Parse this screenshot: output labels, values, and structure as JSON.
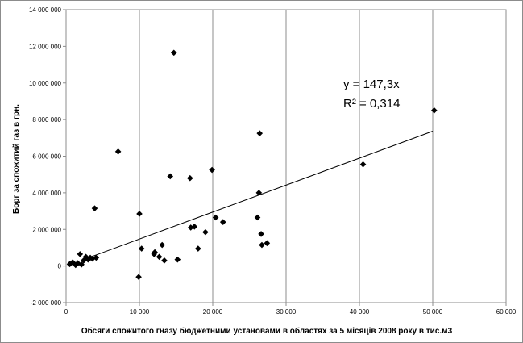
{
  "chart_data": {
    "type": "scatter",
    "title": "",
    "xlabel": "Обсяги спожитого гназу бюджетними установами в областях за 5 місяців 2008 року в тис.м3",
    "ylabel": "Борг за спожитий газ в грн.",
    "xlim": [
      0,
      60000
    ],
    "ylim": [
      -2000000,
      14000000
    ],
    "x_ticks": [
      0,
      10000,
      20000,
      30000,
      40000,
      50000,
      60000
    ],
    "x_tick_labels": [
      "0",
      "10 000",
      "20 000",
      "30 000",
      "40 000",
      "50 000",
      "60 000"
    ],
    "y_ticks": [
      -2000000,
      0,
      2000000,
      4000000,
      6000000,
      8000000,
      10000000,
      12000000,
      14000000
    ],
    "y_tick_labels": [
      "-2 000 000",
      "0",
      "2 000 000",
      "4 000 000",
      "6 000 000",
      "8 000 000",
      "10 000 000",
      "12 000 000",
      "14 000 000"
    ],
    "grid": "vertical",
    "marker": "diamond",
    "marker_color": "#000000",
    "points": [
      {
        "x": 500,
        "y": 100000
      },
      {
        "x": 900,
        "y": 200000
      },
      {
        "x": 1300,
        "y": 50000
      },
      {
        "x": 1600,
        "y": 150000
      },
      {
        "x": 1900,
        "y": 650000
      },
      {
        "x": 2100,
        "y": 80000
      },
      {
        "x": 2400,
        "y": 300000
      },
      {
        "x": 2700,
        "y": 500000
      },
      {
        "x": 3000,
        "y": 350000
      },
      {
        "x": 3300,
        "y": 450000
      },
      {
        "x": 3600,
        "y": 400000
      },
      {
        "x": 3900,
        "y": 3150000
      },
      {
        "x": 4100,
        "y": 450000
      },
      {
        "x": 7100,
        "y": 6250000
      },
      {
        "x": 9900,
        "y": -600000
      },
      {
        "x": 10000,
        "y": 2850000
      },
      {
        "x": 10300,
        "y": 950000
      },
      {
        "x": 12000,
        "y": 650000
      },
      {
        "x": 12100,
        "y": 750000
      },
      {
        "x": 12700,
        "y": 500000
      },
      {
        "x": 13100,
        "y": 1150000
      },
      {
        "x": 13400,
        "y": 300000
      },
      {
        "x": 14200,
        "y": 4900000
      },
      {
        "x": 14700,
        "y": 11650000
      },
      {
        "x": 15200,
        "y": 350000
      },
      {
        "x": 16900,
        "y": 4800000
      },
      {
        "x": 17000,
        "y": 2100000
      },
      {
        "x": 17500,
        "y": 2150000
      },
      {
        "x": 18000,
        "y": 950000
      },
      {
        "x": 19000,
        "y": 1850000
      },
      {
        "x": 19900,
        "y": 5250000
      },
      {
        "x": 20400,
        "y": 2650000
      },
      {
        "x": 21400,
        "y": 2400000
      },
      {
        "x": 26100,
        "y": 2650000
      },
      {
        "x": 26300,
        "y": 4000000
      },
      {
        "x": 26400,
        "y": 7250000
      },
      {
        "x": 26600,
        "y": 1750000
      },
      {
        "x": 26700,
        "y": 1150000
      },
      {
        "x": 27400,
        "y": 1250000
      },
      {
        "x": 40500,
        "y": 5550000
      },
      {
        "x": 50200,
        "y": 8500000
      }
    ],
    "trendline": {
      "slope": 147.3,
      "x_range": [
        3500,
        50000
      ],
      "color": "#000000"
    },
    "annotations": [
      "y = 147,3x",
      "R² = 0,314"
    ]
  }
}
